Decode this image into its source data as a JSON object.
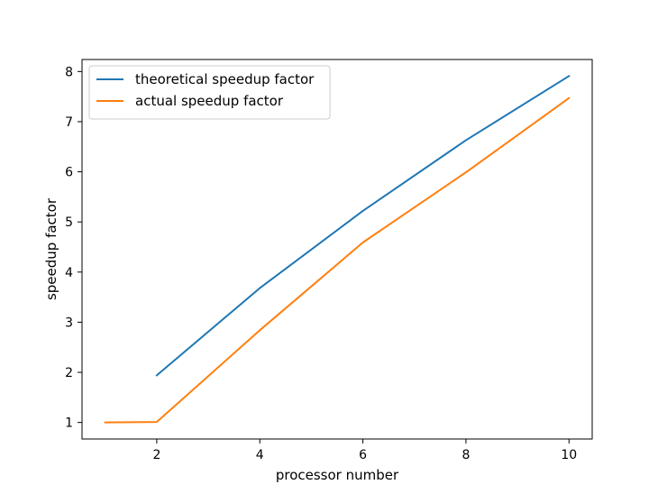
{
  "chart_data": {
    "type": "line",
    "title": "",
    "xlabel": "processor number",
    "ylabel": "speedup factor",
    "xlim": [
      0.55,
      10.45
    ],
    "ylim": [
      0.67,
      8.24
    ],
    "xticks": [
      2,
      4,
      6,
      8,
      10
    ],
    "yticks": [
      1,
      2,
      3,
      4,
      5,
      6,
      7,
      8
    ],
    "grid": false,
    "legend_position": "top-left",
    "series": [
      {
        "name": "theoretical speedup factor",
        "color": "#1f77b4",
        "x": [
          2,
          4,
          6,
          8,
          10
        ],
        "y": [
          1.94,
          3.68,
          5.22,
          6.63,
          7.91
        ]
      },
      {
        "name": "actual speedup factor",
        "color": "#ff7f0e",
        "x": [
          1,
          2,
          4,
          6,
          8,
          10
        ],
        "y": [
          1.0,
          1.01,
          2.84,
          4.59,
          5.99,
          7.47
        ]
      }
    ]
  }
}
